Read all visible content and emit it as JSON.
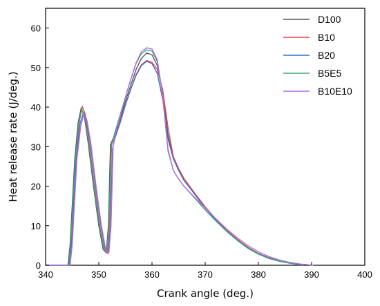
{
  "chart_data": {
    "type": "line",
    "title": "",
    "xlabel": "Crank angle (deg.)",
    "ylabel": "Heat release rate (J/deg.)",
    "xlim": [
      340,
      400
    ],
    "ylim": [
      0,
      65
    ],
    "xticks": [
      340,
      350,
      360,
      370,
      380,
      390,
      400
    ],
    "yticks": [
      0,
      10,
      20,
      30,
      40,
      50,
      60
    ],
    "grid": false,
    "legend": "top-right",
    "series": [
      {
        "name": "D100",
        "color": "#555555",
        "points": [
          [
            340,
            0
          ],
          [
            344.2,
            0
          ],
          [
            344.6,
            5
          ],
          [
            345,
            15
          ],
          [
            345.5,
            27
          ],
          [
            346.1,
            36
          ],
          [
            346.7,
            39.8
          ],
          [
            347.3,
            37.5
          ],
          [
            348,
            31
          ],
          [
            349,
            20
          ],
          [
            350,
            10
          ],
          [
            350.8,
            4
          ],
          [
            351.4,
            3.2
          ],
          [
            351.8,
            10
          ],
          [
            352.2,
            30.5
          ],
          [
            353,
            33
          ],
          [
            354,
            37
          ],
          [
            355,
            41.5
          ],
          [
            356,
            45.5
          ],
          [
            357,
            49.5
          ],
          [
            358,
            52.3
          ],
          [
            359,
            53.7
          ],
          [
            360,
            53.2
          ],
          [
            361,
            50.5
          ],
          [
            362,
            44
          ],
          [
            363,
            33
          ],
          [
            364,
            27
          ],
          [
            365,
            24
          ],
          [
            366,
            21.5
          ],
          [
            368,
            18
          ],
          [
            370,
            14.5
          ],
          [
            372,
            11.5
          ],
          [
            374,
            8.7
          ],
          [
            376,
            6.4
          ],
          [
            378,
            4.4
          ],
          [
            380,
            2.9
          ],
          [
            382,
            1.8
          ],
          [
            384,
            1
          ],
          [
            386,
            0.5
          ],
          [
            387.6,
            0.2
          ],
          [
            387.8,
            0
          ]
        ]
      },
      {
        "name": "B10",
        "color": "#e8474e",
        "points": [
          [
            340,
            0
          ],
          [
            344.4,
            0
          ],
          [
            344.8,
            5
          ],
          [
            345.2,
            15
          ],
          [
            345.7,
            27
          ],
          [
            346.3,
            36
          ],
          [
            346.9,
            40.2
          ],
          [
            347.5,
            38
          ],
          [
            348.2,
            31
          ],
          [
            349.2,
            20
          ],
          [
            350.2,
            10
          ],
          [
            351,
            4
          ],
          [
            351.6,
            3
          ],
          [
            352,
            10
          ],
          [
            352.4,
            30.5
          ],
          [
            353,
            32.5
          ],
          [
            354,
            36.5
          ],
          [
            355,
            40.5
          ],
          [
            356,
            44.5
          ],
          [
            357,
            48.2
          ],
          [
            358,
            50.7
          ],
          [
            359,
            51.8
          ],
          [
            360,
            51.3
          ],
          [
            361,
            49.5
          ],
          [
            362,
            44.5
          ],
          [
            363,
            35
          ],
          [
            364,
            27.5
          ],
          [
            365,
            24.5
          ],
          [
            366,
            22
          ],
          [
            368,
            18.3
          ],
          [
            370,
            14.8
          ],
          [
            372,
            11.7
          ],
          [
            374,
            8.9
          ],
          [
            376,
            6.6
          ],
          [
            378,
            4.6
          ],
          [
            380,
            3
          ],
          [
            382,
            1.9
          ],
          [
            384,
            1.1
          ],
          [
            386,
            0.5
          ],
          [
            388,
            0.2
          ],
          [
            388.2,
            0
          ]
        ]
      },
      {
        "name": "B20",
        "color": "#3a6fc4",
        "points": [
          [
            340,
            0
          ],
          [
            344.5,
            0
          ],
          [
            344.9,
            5
          ],
          [
            345.3,
            15
          ],
          [
            345.8,
            27
          ],
          [
            346.5,
            36
          ],
          [
            347.1,
            38.6
          ],
          [
            347.7,
            37
          ],
          [
            348.4,
            31
          ],
          [
            349.4,
            20
          ],
          [
            350.4,
            10
          ],
          [
            351.2,
            4
          ],
          [
            351.8,
            3.4
          ],
          [
            352.2,
            10
          ],
          [
            352.6,
            29.5
          ],
          [
            353,
            32
          ],
          [
            354,
            36
          ],
          [
            355,
            40.5
          ],
          [
            356,
            44.5
          ],
          [
            357,
            48
          ],
          [
            358,
            50.5
          ],
          [
            359,
            51.6
          ],
          [
            360,
            51
          ],
          [
            361,
            48.5
          ],
          [
            362,
            42
          ],
          [
            363,
            32
          ],
          [
            364,
            27
          ],
          [
            365,
            24
          ],
          [
            366,
            21.5
          ],
          [
            368,
            18
          ],
          [
            370,
            14.5
          ],
          [
            372,
            11.4
          ],
          [
            374,
            8.7
          ],
          [
            376,
            6.4
          ],
          [
            378,
            4.4
          ],
          [
            380,
            2.9
          ],
          [
            382,
            1.8
          ],
          [
            384,
            1
          ],
          [
            386,
            0.5
          ],
          [
            388,
            0.2
          ],
          [
            388.5,
            0
          ]
        ]
      },
      {
        "name": "B5E5",
        "color": "#3aaa78",
        "points": [
          [
            340,
            0
          ],
          [
            344.3,
            0
          ],
          [
            344.7,
            5
          ],
          [
            345.1,
            15
          ],
          [
            345.6,
            27
          ],
          [
            346.2,
            36
          ],
          [
            346.8,
            39.5
          ],
          [
            347.4,
            37.5
          ],
          [
            348.1,
            31
          ],
          [
            349.1,
            20
          ],
          [
            350.1,
            10
          ],
          [
            350.9,
            4
          ],
          [
            351.5,
            3.5
          ],
          [
            351.9,
            10
          ],
          [
            352.3,
            30
          ],
          [
            353,
            33.5
          ],
          [
            354,
            38
          ],
          [
            355,
            42.5
          ],
          [
            356,
            47
          ],
          [
            357,
            51
          ],
          [
            358,
            53.5
          ],
          [
            359,
            54.5
          ],
          [
            360,
            54.2
          ],
          [
            361,
            51.5
          ],
          [
            362,
            43
          ],
          [
            363,
            29
          ],
          [
            364,
            24
          ],
          [
            365,
            21.8
          ],
          [
            366,
            20
          ],
          [
            368,
            17
          ],
          [
            370,
            14
          ],
          [
            372,
            11.2
          ],
          [
            374,
            8.6
          ],
          [
            376,
            6.3
          ],
          [
            378,
            4.3
          ],
          [
            380,
            2.8
          ],
          [
            382,
            1.7
          ],
          [
            384,
            1
          ],
          [
            386,
            0.5
          ],
          [
            387.5,
            0.2
          ],
          [
            387.6,
            0
          ]
        ]
      },
      {
        "name": "B10E10",
        "color": "#b46ee0",
        "points": [
          [
            340,
            0
          ],
          [
            344.6,
            0
          ],
          [
            345,
            5
          ],
          [
            345.4,
            15
          ],
          [
            345.9,
            27
          ],
          [
            346.6,
            35
          ],
          [
            347.2,
            38.3
          ],
          [
            347.8,
            36.5
          ],
          [
            348.5,
            31
          ],
          [
            349.5,
            20
          ],
          [
            350.5,
            10
          ],
          [
            351.3,
            4
          ],
          [
            351.9,
            3
          ],
          [
            352.3,
            10
          ],
          [
            352.7,
            30
          ],
          [
            353,
            32.5
          ],
          [
            354,
            37.5
          ],
          [
            355,
            42.5
          ],
          [
            356,
            47
          ],
          [
            357,
            51.2
          ],
          [
            358,
            54
          ],
          [
            359,
            55
          ],
          [
            360,
            54.7
          ],
          [
            361,
            52
          ],
          [
            362,
            43
          ],
          [
            363,
            29.5
          ],
          [
            364,
            24
          ],
          [
            365,
            21.8
          ],
          [
            366,
            20
          ],
          [
            368,
            17.2
          ],
          [
            370,
            14.5
          ],
          [
            372,
            11.8
          ],
          [
            374,
            9.2
          ],
          [
            376,
            7
          ],
          [
            378,
            5
          ],
          [
            380,
            3.4
          ],
          [
            382,
            2.2
          ],
          [
            384,
            1.3
          ],
          [
            386,
            0.7
          ],
          [
            388,
            0.3
          ],
          [
            390.4,
            0
          ]
        ]
      }
    ]
  }
}
